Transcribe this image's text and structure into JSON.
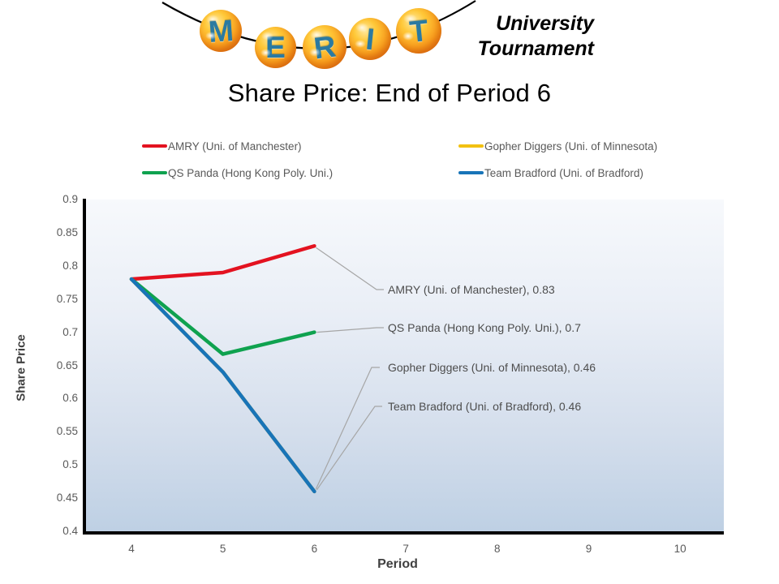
{
  "header": {
    "logo_letters": [
      "M",
      "E",
      "R",
      "I",
      "T"
    ],
    "subtitle_line1": "University",
    "subtitle_line2": "Tournament"
  },
  "title": "Share Price: End of Period 6",
  "chart_data": {
    "type": "line",
    "title": "Share Price: End of Period 6",
    "xlabel": "Period",
    "ylabel": "Share Price",
    "x": [
      4,
      5,
      6
    ],
    "x_axis_ticks": [
      4,
      5,
      6,
      7,
      8,
      9,
      10
    ],
    "y_ticks": [
      0.9,
      0.85,
      0.8,
      0.75,
      0.7,
      0.65,
      0.6,
      0.55,
      0.5,
      0.45,
      0.4
    ],
    "ylim": [
      0.4,
      0.9
    ],
    "grid": false,
    "legend_position": "top",
    "plot_background_top": "#f7f9fc",
    "plot_background_bottom": "#bed0e4",
    "axis_color": "#000000",
    "leader_line_color": "#a6a6a6",
    "series": [
      {
        "name": "AMRY (Uni. of Manchester)",
        "color": "#e31220",
        "values": [
          0.78,
          0.79,
          0.83
        ]
      },
      {
        "name": "Gopher Diggers (Uni. of Minnesota)",
        "color": "#f2c111",
        "values": [
          0.78,
          0.64,
          0.46
        ]
      },
      {
        "name": "QS Panda (Hong Kong Poly. Uni.)",
        "color": "#0fa24f",
        "values": [
          0.78,
          0.667,
          0.7
        ]
      },
      {
        "name": "Team Bradford (Uni. of Bradford)",
        "color": "#1874b8",
        "values": [
          0.78,
          0.64,
          0.46
        ]
      }
    ],
    "annotations": [
      {
        "text": "AMRY (Uni. of Manchester), 0.83",
        "series": 0,
        "x": 6,
        "value": 0.83
      },
      {
        "text": "QS Panda (Hong Kong Poly. Uni.), 0.7",
        "series": 2,
        "x": 6,
        "value": 0.7
      },
      {
        "text": "Gopher Diggers (Uni. of Minnesota), 0.46",
        "series": 1,
        "x": 6,
        "value": 0.46
      },
      {
        "text": "Team Bradford (Uni. of Bradford), 0.46",
        "series": 3,
        "x": 6,
        "value": 0.46
      }
    ]
  }
}
